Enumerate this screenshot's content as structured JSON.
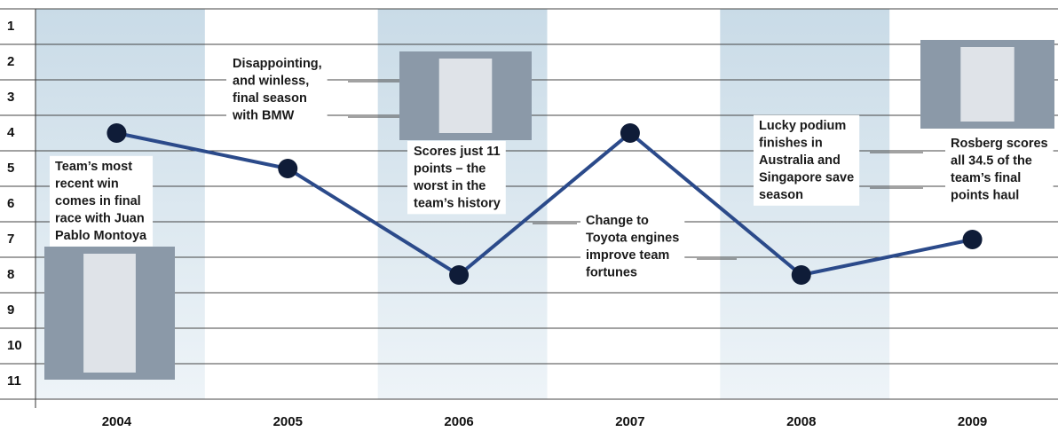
{
  "chart_data": {
    "type": "line",
    "categories": [
      "2004",
      "2005",
      "2006",
      "2007",
      "2008",
      "2009"
    ],
    "series": [
      {
        "name": null,
        "color": "#2b4a8a",
        "values": [
          4,
          5,
          8,
          4,
          8,
          7
        ]
      }
    ],
    "ylim": [
      0.5,
      11.5
    ],
    "y_inverted": true,
    "yticks": [
      1,
      2,
      3,
      4,
      5,
      6,
      7,
      8,
      9,
      10,
      11
    ],
    "annotations": [
      {
        "lines": [
          "Team’s most",
          "recent win",
          "comes in final",
          "race with Juan",
          "Pablo Montoya"
        ]
      },
      {
        "lines": [
          "Disappointing,",
          "and winless,",
          "final season",
          "with BMW"
        ]
      },
      {
        "lines": [
          "Scores just 11",
          "points – the",
          "worst in the",
          "team’s history"
        ]
      },
      {
        "lines": [
          "Change to",
          "Toyota engines",
          "improve team",
          "fortunes"
        ]
      },
      {
        "lines": [
          "Lucky podium",
          "finishes in",
          "Australia and",
          "Singapore save",
          "season"
        ]
      },
      {
        "lines": [
          "Rosberg scores",
          "all 34.5 of the",
          "team’s final",
          "points haul"
        ]
      }
    ]
  }
}
